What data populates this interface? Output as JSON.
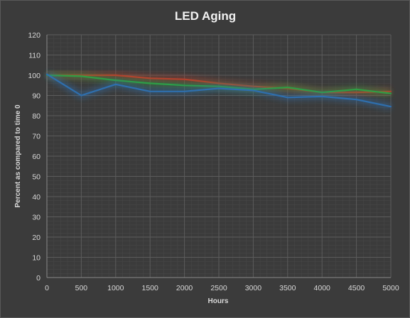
{
  "chart_data": {
    "type": "line",
    "title": "LED Aging",
    "xlabel": "Hours",
    "ylabel": "Percent as compared  to time 0",
    "x": [
      0,
      500,
      1000,
      1500,
      2000,
      2500,
      3000,
      3500,
      4000,
      4500,
      5000
    ],
    "xlim": [
      0,
      5000
    ],
    "ylim": [
      0,
      120
    ],
    "xticks": [
      "0",
      "500",
      "1000",
      "1500",
      "2000",
      "2500",
      "3000",
      "3500",
      "4000",
      "4500",
      "5000"
    ],
    "yticks": [
      "0",
      "10",
      "20",
      "30",
      "40",
      "50",
      "60",
      "70",
      "80",
      "90",
      "100",
      "110",
      "120"
    ],
    "grid": true,
    "series": [
      {
        "color": "#c0392b",
        "values": [
          100,
          100,
          100,
          98.5,
          98,
          96,
          94.5,
          93.5,
          91.5,
          91.5,
          92
        ]
      },
      {
        "color": "#2f9e44",
        "values": [
          100,
          99.5,
          97.5,
          96,
          95,
          94.5,
          93,
          94,
          91.5,
          93,
          91
        ]
      },
      {
        "color": "#2f6fae",
        "values": [
          100.5,
          90,
          95.5,
          92,
          92,
          93.5,
          92.5,
          89,
          89.5,
          88,
          84.5
        ]
      }
    ]
  }
}
